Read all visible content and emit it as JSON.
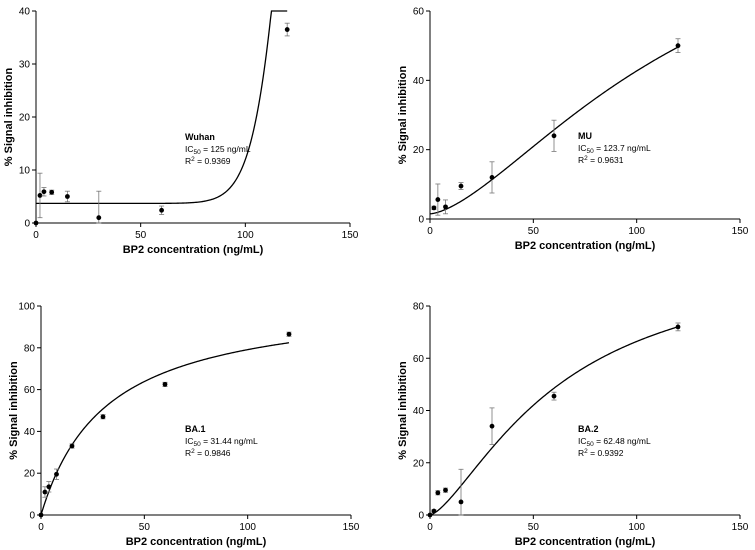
{
  "chart_data": [
    {
      "type": "scatter",
      "xlabel": "BP2 concentration (ng/mL)",
      "ylabel": "% Signal inhibition",
      "xlim": [
        0,
        150
      ],
      "ylim": [
        0,
        40
      ],
      "xticks": [
        0,
        50,
        100,
        150
      ],
      "yticks": [
        0,
        10,
        20,
        30,
        40
      ],
      "annotation": {
        "name": "Wuhan",
        "ic50_prefix": "IC",
        "ic50_sub": "50",
        "ic50_value": " = 125 ng/mL",
        "r2_prefix": "R",
        "r2_sup": "2",
        "r2_value": " = 0.9369"
      },
      "points": [
        {
          "x": 0,
          "y": 0,
          "err": 0
        },
        {
          "x": 1.9,
          "y": 5.2,
          "err": 4.2
        },
        {
          "x": 3.8,
          "y": 5.9,
          "err": 0.8
        },
        {
          "x": 7.5,
          "y": 5.8,
          "err": 0.4
        },
        {
          "x": 15,
          "y": 5.0,
          "err": 1.0
        },
        {
          "x": 30,
          "y": 1.0,
          "err": 5.0
        },
        {
          "x": 60,
          "y": 2.4,
          "err": 0.8
        },
        {
          "x": 120,
          "y": 36.5,
          "err": 1.2
        }
      ],
      "fit": {
        "model": "hill",
        "bottom": 3.7,
        "top": 200,
        "ic50": 125,
        "hill": 14,
        "xmin": 0,
        "xmax": 120
      }
    },
    {
      "type": "scatter",
      "xlabel": "BP2 concentration (ng/mL)",
      "ylabel": "% Signal inhibition",
      "xlim": [
        0,
        150
      ],
      "ylim": [
        0,
        60
      ],
      "xticks": [
        0,
        50,
        100,
        150
      ],
      "yticks": [
        0,
        20,
        40,
        60
      ],
      "annotation": {
        "name": "MU",
        "ic50_prefix": "IC",
        "ic50_sub": "50",
        "ic50_value": " = 123.7 ng/mL",
        "r2_prefix": "R",
        "r2_sup": "2",
        "r2_value": " = 0.9631"
      },
      "points": [
        {
          "x": 1.9,
          "y": 3.2,
          "err": 0.5
        },
        {
          "x": 3.8,
          "y": 5.6,
          "err": 4.5
        },
        {
          "x": 7.5,
          "y": 3.5,
          "err": 2.0
        },
        {
          "x": 15,
          "y": 9.5,
          "err": 1.0
        },
        {
          "x": 30,
          "y": 12.0,
          "err": 4.5
        },
        {
          "x": 60,
          "y": 24.0,
          "err": 4.5
        },
        {
          "x": 120,
          "y": 50.0,
          "err": 2.0
        }
      ],
      "fit": {
        "model": "hill",
        "bottom": 1.5,
        "top": 100,
        "ic50": 123.7,
        "hill": 1.55,
        "xmin": 0,
        "xmax": 120
      }
    },
    {
      "type": "scatter",
      "xlabel": "BP2 concentration (ng/mL)",
      "ylabel": "% Signal inhibition",
      "xlim": [
        0,
        150
      ],
      "ylim": [
        0,
        100
      ],
      "xticks": [
        0,
        50,
        100,
        150
      ],
      "yticks": [
        0,
        20,
        40,
        60,
        80,
        100
      ],
      "annotation": {
        "name": "BA.1",
        "ic50_prefix": "IC",
        "ic50_sub": "50",
        "ic50_value": " = 31.44 ng/mL",
        "r2_prefix": "R",
        "r2_sup": "2",
        "r2_value": " = 0.9846"
      },
      "points": [
        {
          "x": 0,
          "y": 0,
          "err": 0
        },
        {
          "x": 1.9,
          "y": 11.0,
          "err": 2.5
        },
        {
          "x": 3.8,
          "y": 13.5,
          "err": 2.5
        },
        {
          "x": 7.5,
          "y": 19.5,
          "err": 2.5
        },
        {
          "x": 15,
          "y": 33.0,
          "err": 1.0
        },
        {
          "x": 30,
          "y": 47.0,
          "err": 1.0
        },
        {
          "x": 60,
          "y": 62.5,
          "err": 1.0
        },
        {
          "x": 120,
          "y": 86.5,
          "err": 1.0
        }
      ],
      "fit": {
        "model": "hill",
        "bottom": 0,
        "top": 104,
        "ic50": 31.44,
        "hill": 1.0,
        "xmin": 0,
        "xmax": 120
      }
    },
    {
      "type": "scatter",
      "xlabel": "BP2 concentration (ng/mL)",
      "ylabel": "% Signal inhibition",
      "xlim": [
        0,
        150
      ],
      "ylim": [
        0,
        80
      ],
      "xticks": [
        0,
        50,
        100,
        150
      ],
      "yticks": [
        0,
        20,
        40,
        60,
        80
      ],
      "annotation": {
        "name": "BA.2",
        "ic50_prefix": "IC",
        "ic50_sub": "50",
        "ic50_value": " = 62.48 ng/mL",
        "r2_prefix": "R",
        "r2_sup": "2",
        "r2_value": " = 0.9392"
      },
      "points": [
        {
          "x": 0,
          "y": 0,
          "err": 0
        },
        {
          "x": 1.9,
          "y": 1.5,
          "err": 0.5
        },
        {
          "x": 3.8,
          "y": 8.5,
          "err": 0.8
        },
        {
          "x": 7.5,
          "y": 9.5,
          "err": 0.8
        },
        {
          "x": 15,
          "y": 5.0,
          "err": 12.5
        },
        {
          "x": 30,
          "y": 34.0,
          "err": 7.0
        },
        {
          "x": 60,
          "y": 45.5,
          "err": 1.5
        },
        {
          "x": 120,
          "y": 72.0,
          "err": 1.5
        }
      ],
      "fit": {
        "model": "hill",
        "bottom": 0,
        "top": 100,
        "ic50": 62.48,
        "hill": 1.45,
        "xmin": 0,
        "xmax": 120
      }
    }
  ]
}
